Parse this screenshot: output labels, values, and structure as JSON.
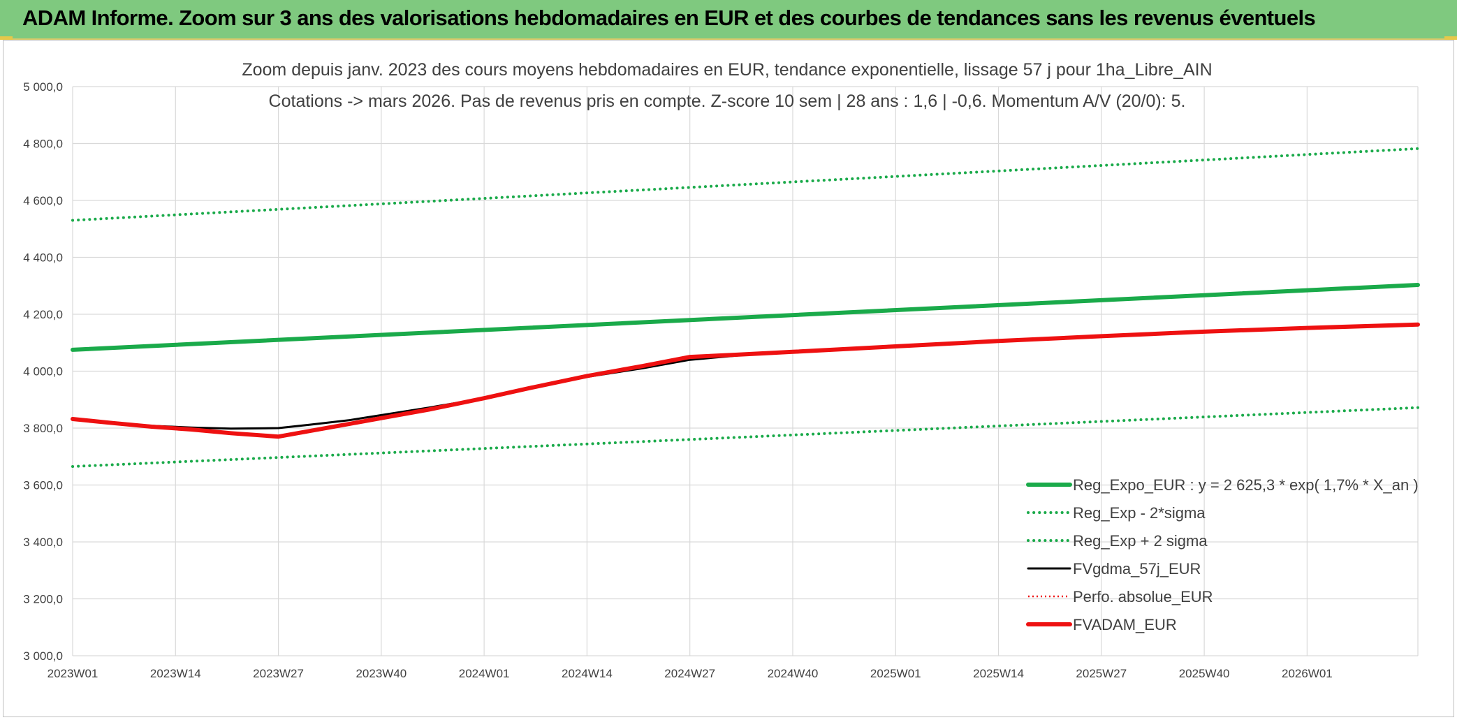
{
  "header": {
    "title": "ADAM Informe. Zoom sur 3 ans des valorisations hebdomadaires en EUR et des courbes de tendances sans les revenus éventuels"
  },
  "colors": {
    "header_bg": "#7fc97f",
    "trend_green": "#1aaa4a",
    "band_green": "#1aaa4a",
    "black_series": "#000000",
    "red_series": "#ee1111",
    "grid": "#d9d9d9",
    "text": "#404040"
  },
  "chart_data": {
    "type": "line",
    "title": "Zoom depuis janv. 2023 des cours moyens hebdomadaires en EUR, tendance exponentielle, lissage 57 j pour 1ha_Libre_AIN",
    "subtitle": "Cotations -> mars 2026. Pas de revenus pris en compte. Z-score 10 sem | 28 ans : 1,6 | -0,6. Momentum A/V (20/0): 5.",
    "xlabel": "",
    "ylabel": "",
    "ylim": [
      3000,
      5000
    ],
    "yticks": [
      "3 000,0",
      "3 200,0",
      "3 400,0",
      "3 600,0",
      "3 800,0",
      "4 000,0",
      "4 200,0",
      "4 400,0",
      "4 600,0",
      "4 800,0",
      "5 000,0"
    ],
    "ytick_values": [
      3000,
      3200,
      3400,
      3600,
      3800,
      4000,
      4200,
      4400,
      4600,
      4800,
      5000
    ],
    "xlim": [
      0,
      170
    ],
    "xticks": [
      "2023W01",
      "2023W14",
      "2023W27",
      "2023W40",
      "2024W01",
      "2024W14",
      "2024W27",
      "2024W40",
      "2025W01",
      "2025W14",
      "2025W27",
      "2025W40",
      "2026W01"
    ],
    "xtick_values": [
      0,
      13,
      26,
      39,
      52,
      65,
      78,
      91,
      104,
      117,
      130,
      143,
      156
    ],
    "grid": true,
    "legend_position": "bottom-right",
    "series": [
      {
        "name": "Reg_Expo_EUR : y = 2 625,3 * exp( 1,7% *  X_an )",
        "style": "solid-thick",
        "color": "#1aaa4a",
        "x": [
          0,
          170
        ],
        "y": [
          4075,
          4303
        ]
      },
      {
        "name": "Reg_Exp - 2*sigma",
        "style": "dotted",
        "color": "#1aaa4a",
        "x": [
          0,
          170
        ],
        "y": [
          3665,
          3872
        ]
      },
      {
        "name": "Reg_Exp + 2 sigma",
        "style": "dotted",
        "color": "#1aaa4a",
        "x": [
          0,
          170
        ],
        "y": [
          4530,
          4782
        ]
      },
      {
        "name": "FVgdma_57j_EUR",
        "style": "solid",
        "color": "#000000",
        "x": [
          0,
          5,
          10,
          15,
          20,
          26,
          30,
          35,
          40,
          45,
          52,
          58,
          65,
          72,
          78,
          84,
          91,
          104,
          117,
          130,
          143,
          156,
          170
        ],
        "y": [
          3832,
          3820,
          3808,
          3802,
          3798,
          3800,
          3812,
          3828,
          3850,
          3872,
          3905,
          3940,
          3980,
          4010,
          4040,
          4055,
          4070,
          4088,
          4107,
          4124,
          4140,
          4152,
          4164
        ]
      },
      {
        "name": "Perfo. absolue_EUR",
        "style": "dotted-thin",
        "color": "#ee1111",
        "x": [
          0,
          5,
          10,
          15,
          20,
          26,
          30,
          35,
          40,
          45,
          52,
          58,
          65,
          72,
          78,
          84,
          91,
          104,
          117,
          130,
          143,
          156,
          170
        ],
        "y": [
          3832,
          3818,
          3805,
          3795,
          3782,
          3770,
          3790,
          3815,
          3840,
          3865,
          3905,
          3942,
          3983,
          4018,
          4050,
          4058,
          4068,
          4087,
          4106,
          4123,
          4139,
          4152,
          4164
        ]
      },
      {
        "name": "FVADAM_EUR",
        "style": "solid-thick",
        "color": "#ee1111",
        "x": [
          0,
          5,
          10,
          15,
          20,
          26,
          30,
          35,
          40,
          45,
          52,
          58,
          65,
          72,
          78,
          84,
          91,
          104,
          117,
          130,
          143,
          156,
          170
        ],
        "y": [
          3832,
          3818,
          3805,
          3795,
          3782,
          3770,
          3790,
          3815,
          3840,
          3865,
          3905,
          3942,
          3983,
          4018,
          4050,
          4058,
          4068,
          4087,
          4106,
          4123,
          4139,
          4152,
          4164
        ]
      }
    ]
  }
}
